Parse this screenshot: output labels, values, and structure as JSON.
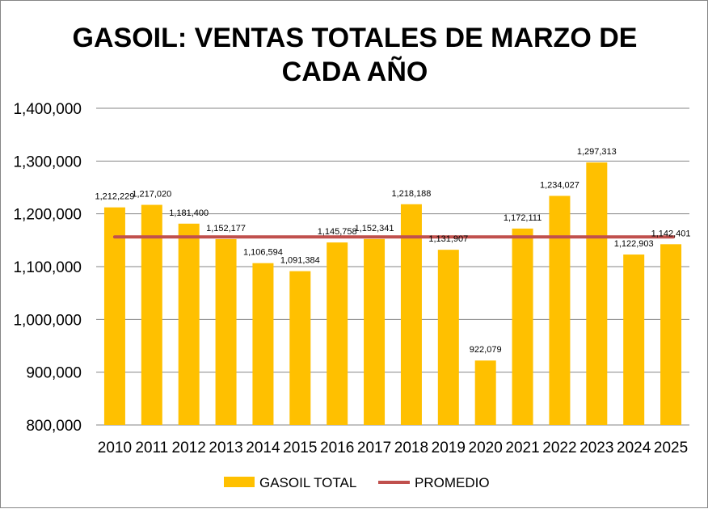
{
  "chart_data": {
    "type": "bar",
    "title_lines": [
      "GASOIL: VENTAS TOTALES DE MARZO DE",
      "CADA AÑO"
    ],
    "categories": [
      "2010",
      "2011",
      "2012",
      "2013",
      "2014",
      "2015",
      "2016",
      "2017",
      "2018",
      "2019",
      "2020",
      "2021",
      "2022",
      "2023",
      "2024",
      "2025"
    ],
    "series": [
      {
        "name": "GASOIL TOTAL",
        "type": "bar",
        "color": "#FFC000",
        "values": [
          1212229,
          1217020,
          1181400,
          1152177,
          1106594,
          1091384,
          1145758,
          1152341,
          1218188,
          1131907,
          922079,
          1172111,
          1234027,
          1297313,
          1122903,
          1142401
        ],
        "labels": [
          "1,212,229",
          "1,217,020",
          "1,181,400",
          "1,152,177",
          "1,106,594",
          "1,091,384",
          "1,145,758",
          "1,152,341",
          "1,218,188",
          "1,131,907",
          "922,079",
          "1,172,111",
          "1,234,027",
          "1,297,313",
          "1,122,903",
          "1,142,401"
        ]
      },
      {
        "name": "PROMEDIO",
        "type": "line",
        "color": "#C0504D",
        "value": 1156240
      }
    ],
    "ylim": [
      800000,
      1400000
    ],
    "yticks": [
      800000,
      900000,
      1000000,
      1100000,
      1200000,
      1300000,
      1400000
    ],
    "ytick_labels": [
      "800,000",
      "900,000",
      "1,000,000",
      "1,100,000",
      "1,200,000",
      "1,300,000",
      "1,400,000"
    ],
    "grid": true,
    "legend": "bottom",
    "xlabel": "",
    "ylabel": ""
  }
}
